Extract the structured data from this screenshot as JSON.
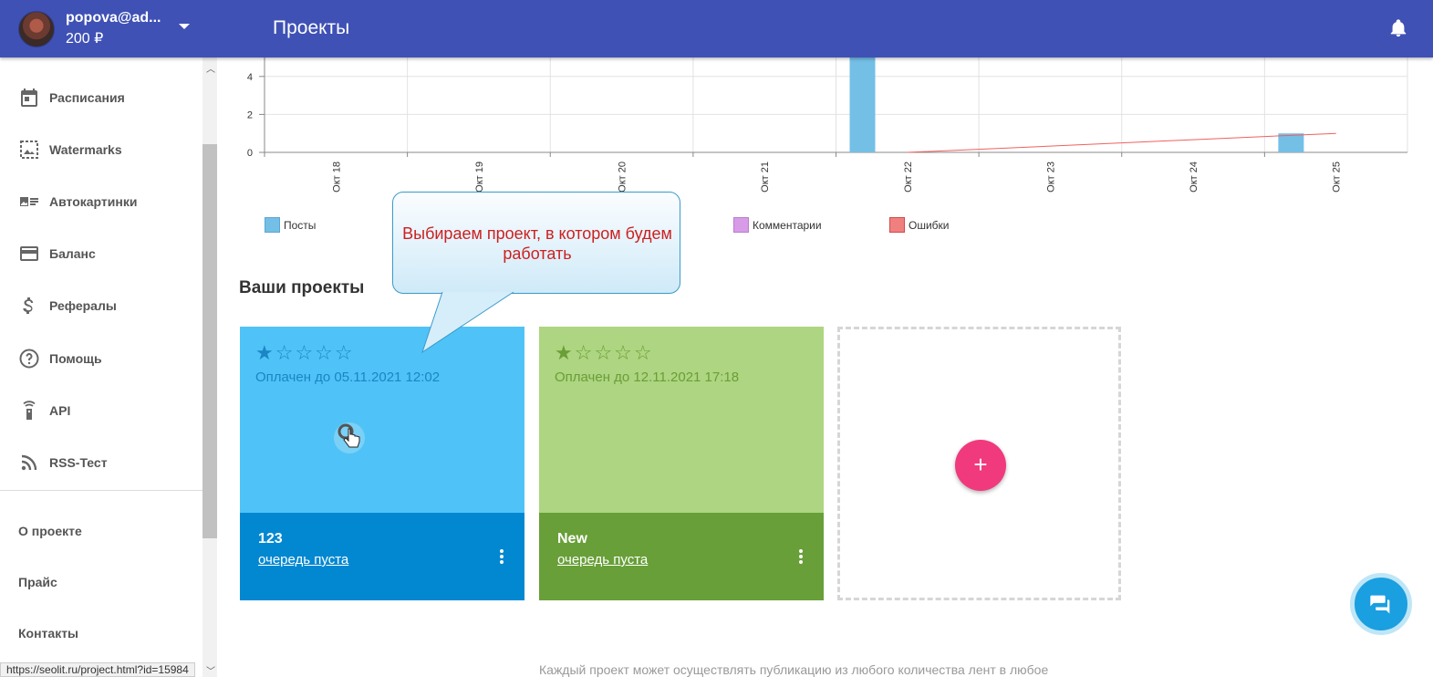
{
  "header": {
    "user_email": "popova@ad...",
    "balance": "200 ₽",
    "page_title": "Проекты",
    "icons": [
      "avatar",
      "chevron-down-icon",
      "bell-icon"
    ]
  },
  "sidebar": {
    "items": [
      {
        "label": "Расписания",
        "icon": "calendar-icon"
      },
      {
        "label": "Watermarks",
        "icon": "image-icon"
      },
      {
        "label": "Автокартинки",
        "icon": "picture-list-icon"
      },
      {
        "label": "Баланс",
        "icon": "credit-card-icon"
      },
      {
        "label": "Рефералы",
        "icon": "dollar-icon"
      },
      {
        "label": "Помощь",
        "icon": "help-icon"
      },
      {
        "label": "API",
        "icon": "api-icon"
      },
      {
        "label": "RSS-Тест",
        "icon": "rss-icon"
      }
    ],
    "links": [
      "О проекте",
      "Прайс",
      "Контакты"
    ]
  },
  "status_url": "https://seolit.ru/project.html?id=15984",
  "chart_data": {
    "type": "bar",
    "categories": [
      "Окт 18",
      "Окт 19",
      "Окт 20",
      "Окт 21",
      "Окт 22",
      "Окт 23",
      "Окт 24",
      "Окт 25"
    ],
    "y_ticks": [
      "0",
      "2",
      "4"
    ],
    "ylim": [
      0,
      5
    ],
    "series": [
      {
        "name": "Посты",
        "type": "bar",
        "color": "#74bfe6",
        "values": [
          0,
          0,
          0,
          0,
          5,
          0,
          0,
          1
        ]
      },
      {
        "name": "Ошибки",
        "type": "line",
        "color": "#f06060",
        "values": [
          null,
          null,
          null,
          null,
          0,
          0.33,
          0.67,
          1
        ]
      }
    ],
    "legend": [
      {
        "name": "Посты",
        "color": "#74bfe6"
      },
      {
        "name": "Комментарии",
        "color": "#d89be8"
      },
      {
        "name": "Ошибки",
        "color": "#f08080"
      }
    ],
    "legend_position": "bottom",
    "grid": true
  },
  "projects_section": {
    "title": "Ваши проекты",
    "cards": [
      {
        "name": "123",
        "paid_until": "Оплачен до 05.11.2021 12:02",
        "queue": "очередь пуста",
        "rating": 0.5,
        "rating_max": 5,
        "top_color": "#4fc3f7",
        "bottom_color": "#0288d1",
        "text_color": "#1a86c4"
      },
      {
        "name": "New",
        "paid_until": "Оплачен до 12.11.2021 17:18",
        "queue": "очередь пуста",
        "rating": 0.5,
        "rating_max": 5,
        "top_color": "#aed581",
        "bottom_color": "#689f38",
        "text_color": "#6a9e36"
      }
    ],
    "add_label": "+"
  },
  "callout": {
    "text": "Выбираем проект, в котором будем работать"
  },
  "footer_text": "Каждый проект может осуществлять публикацию из любого количества лент в любое"
}
